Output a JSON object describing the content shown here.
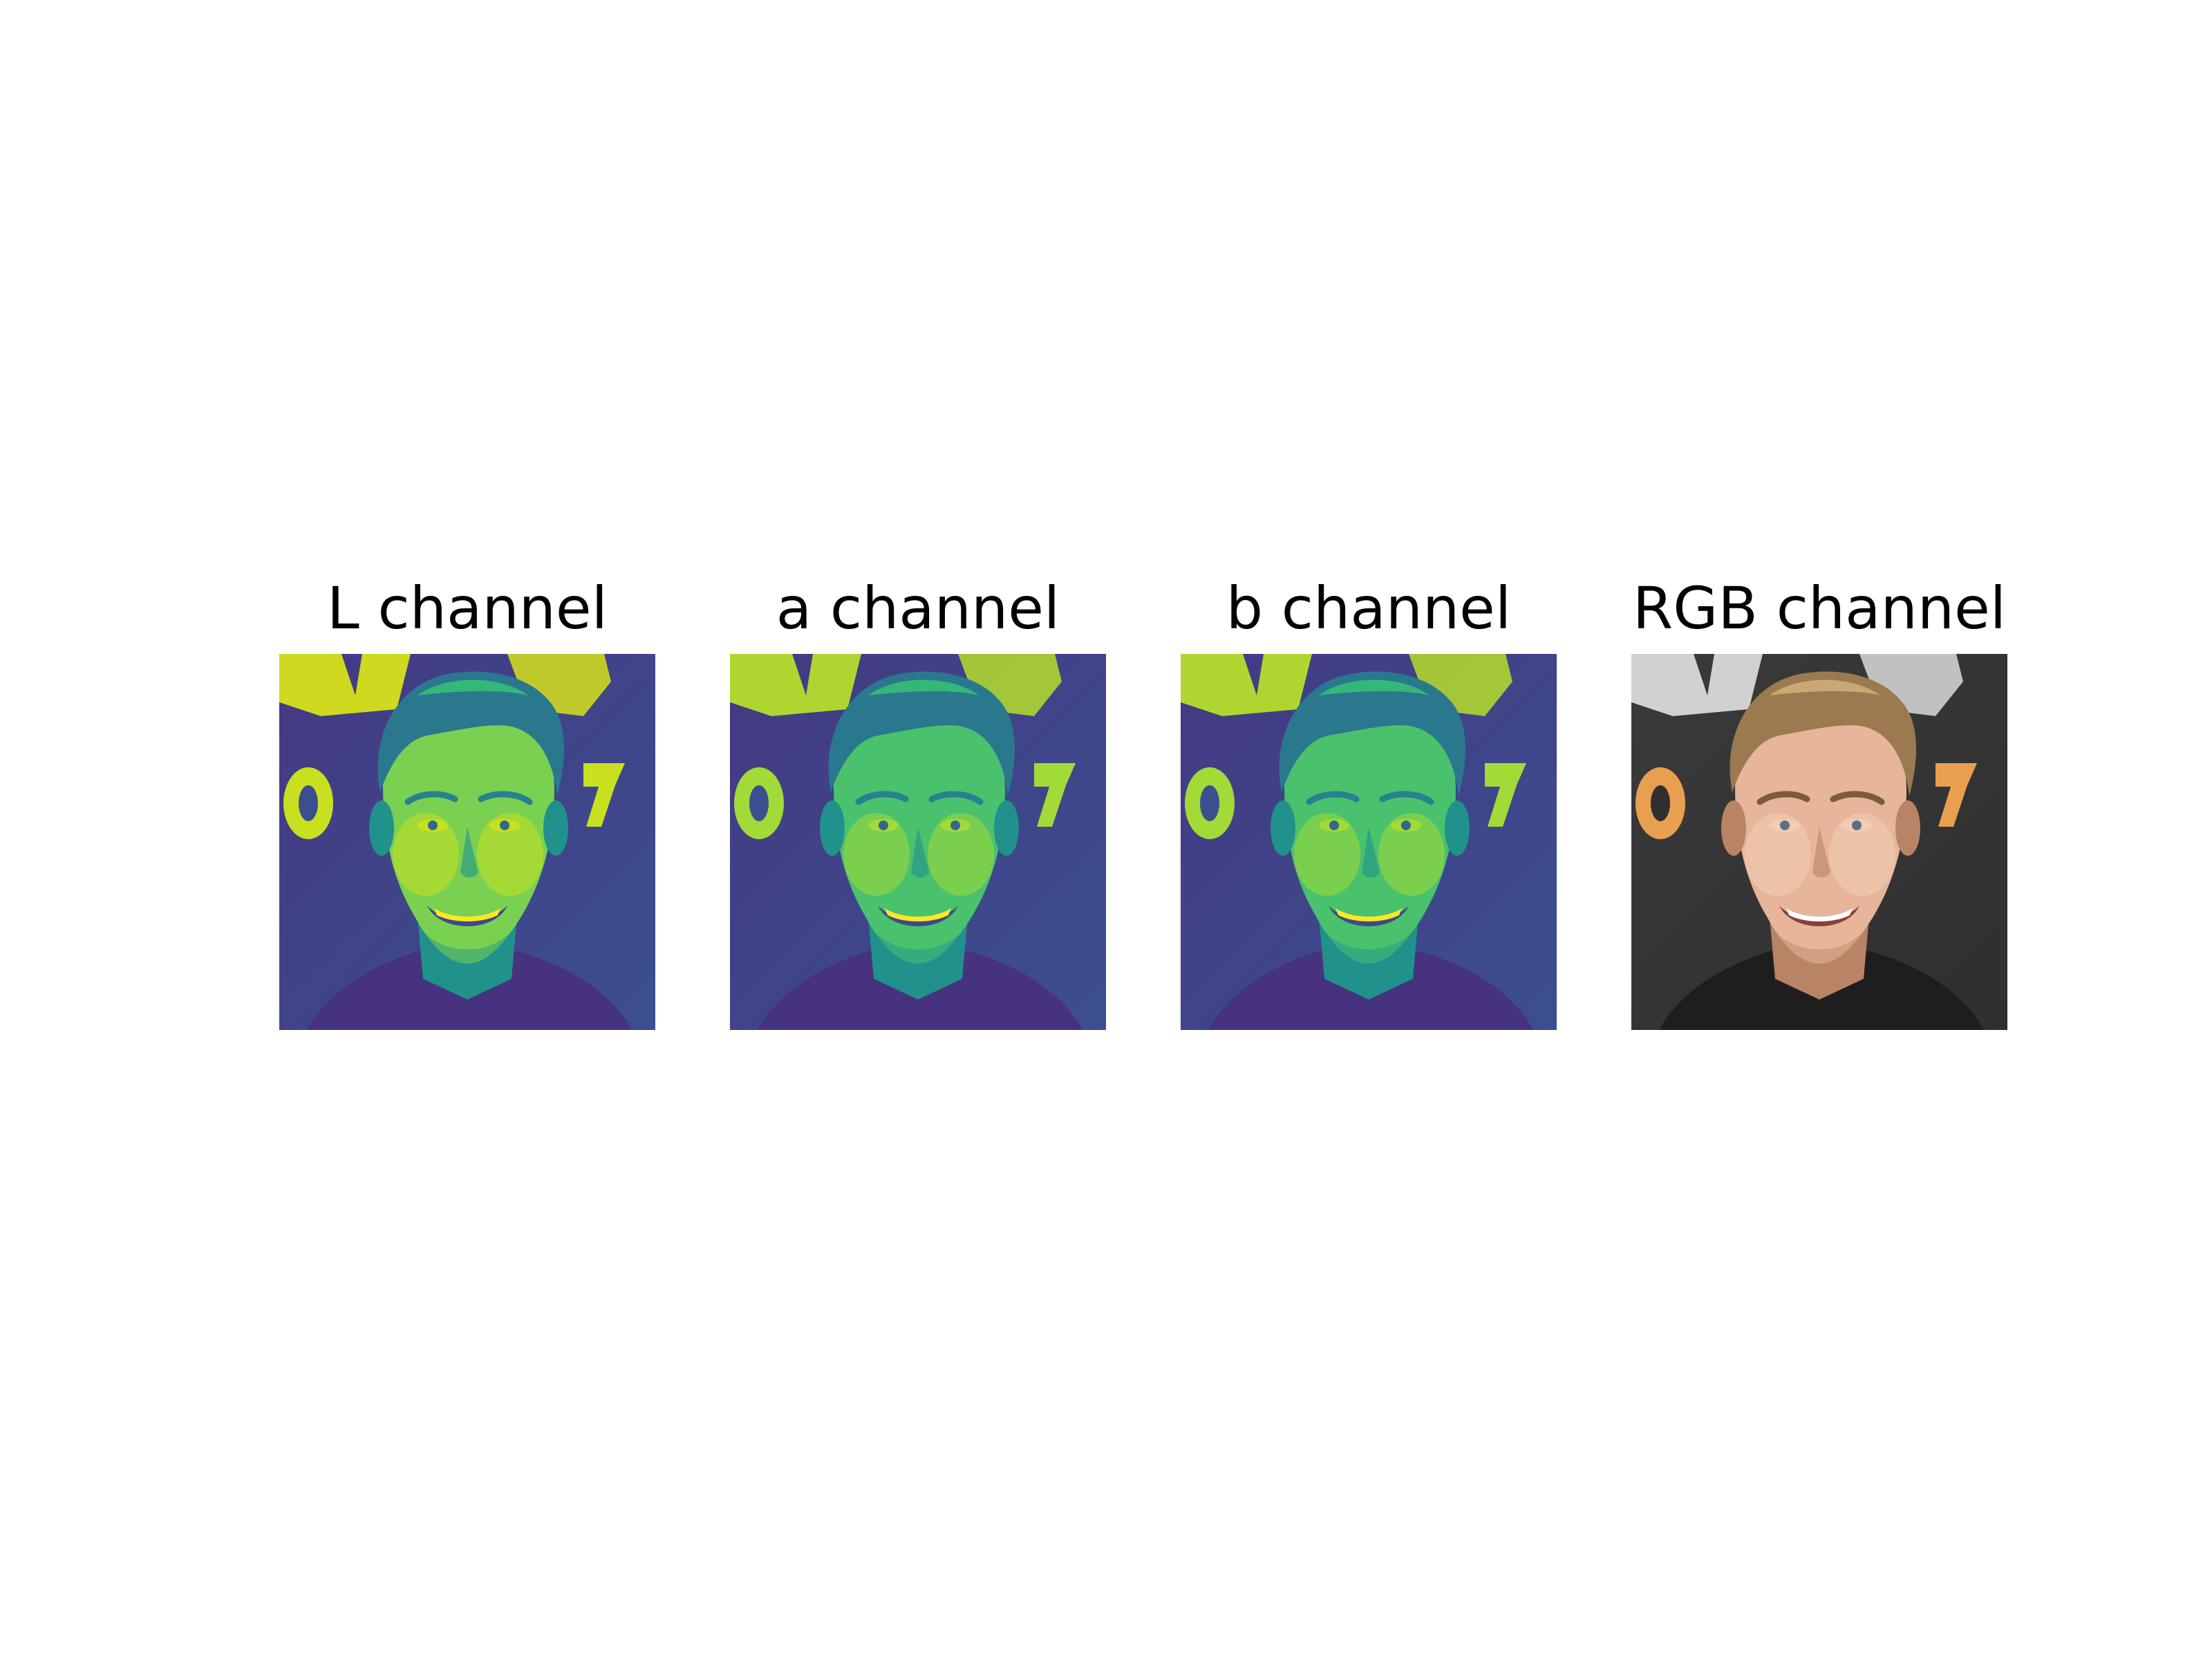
{
  "figure": {
    "panels": [
      {
        "title": "L channel",
        "kind": "viridis",
        "variant": "L"
      },
      {
        "title": "a channel",
        "kind": "viridis",
        "variant": "a"
      },
      {
        "title": "b channel",
        "kind": "viridis",
        "variant": "b"
      },
      {
        "title": "RGB channel",
        "kind": "rgb",
        "variant": "rgb"
      }
    ],
    "colors": {
      "viridis_dark": "#3b4f8f",
      "viridis_mid": "#22a884",
      "viridis_bright": "#bde31f",
      "rgb_background": "#2f2f2f",
      "rgb_skin": "#e6b59a",
      "rgb_hair": "#9a7a4e",
      "rgb_accent": "#e8a050"
    }
  }
}
